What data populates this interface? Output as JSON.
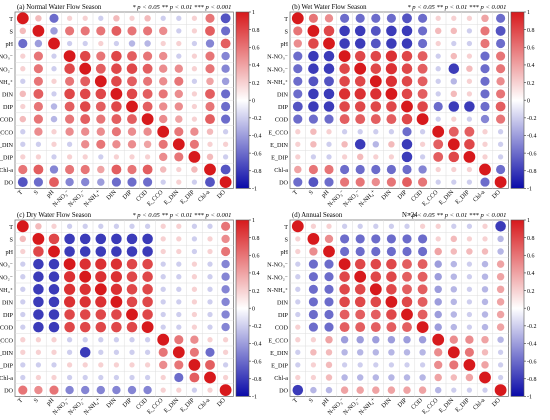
{
  "legend_text": "* p < 0.05 ** p < 0.01 *** p < 0.001",
  "variables": [
    "T",
    "S",
    "pH",
    "N-NO₃⁻",
    "N-NO₂⁻",
    "N-NH₄⁺",
    "DIN",
    "DIP",
    "COD",
    "E_CCO",
    "E_DIN",
    "E_DIP",
    "Chl-a",
    "DO"
  ],
  "colors": {
    "positive": "#d7191c",
    "negative": "#0a0aa8",
    "neutral": "#ffffff",
    "border": "#7a7a7a",
    "grid": "#dddddd"
  },
  "colorbar": {
    "ticks": [
      "1",
      "0.8",
      "0.6",
      "0.4",
      "0.2",
      "0",
      "-0.2",
      "-0.4",
      "-0.6",
      "-0.8",
      "-1"
    ]
  },
  "panels": [
    {
      "title": "(a) Normal Water Flow Season",
      "extra": ""
    },
    {
      "title": "(b) Wet Water Flow Season",
      "extra": ""
    },
    {
      "title": "(c) Dry Water Flow Season",
      "extra": ""
    },
    {
      "title": "(d) Annual Season",
      "extra": "N=24"
    }
  ],
  "chart_data": [
    {
      "type": "heatmap",
      "title": "(a) Normal Water Flow Season",
      "row_labels": [
        "T",
        "S",
        "pH",
        "N-NO₃⁻",
        "N-NO₂⁻",
        "N-NH₄⁺",
        "DIN",
        "DIP",
        "COD",
        "E_CCO",
        "E_DIN",
        "E_DIP",
        "Chl-a",
        "DO"
      ],
      "col_labels": [
        "T",
        "S",
        "pH",
        "N-NO₃⁻",
        "N-NO₂⁻",
        "N-NH₄⁺",
        "DIN",
        "DIP",
        "COD",
        "E_CCO",
        "E_DIN",
        "E_DIP",
        "Chl-a",
        "DO"
      ],
      "values": [
        [
          1,
          0.3,
          -0.6,
          0.2,
          0.2,
          -0.2,
          0.3,
          0.2,
          0.3,
          -0.2,
          -0.2,
          0.2,
          0.6,
          -0.7
        ],
        [
          0.3,
          1,
          -0.4,
          0.6,
          0.6,
          0.6,
          0.7,
          0.6,
          0.6,
          0.5,
          -0.2,
          0.2,
          0.7,
          -0.6
        ],
        [
          -0.6,
          -0.4,
          1,
          -0.2,
          -0.2,
          0.2,
          -0.2,
          -0.3,
          -0.3,
          0.2,
          0.2,
          -0.2,
          -0.5,
          0.7
        ],
        [
          0.2,
          0.6,
          -0.2,
          1,
          0.8,
          0.6,
          0.8,
          0.7,
          0.6,
          0.5,
          -0.2,
          0.2,
          0.6,
          -0.5
        ],
        [
          0.2,
          0.6,
          -0.2,
          0.8,
          1,
          0.7,
          0.8,
          0.8,
          0.7,
          0.5,
          0.5,
          0.2,
          0.6,
          -0.5
        ],
        [
          -0.2,
          0.6,
          0.2,
          0.6,
          0.7,
          1,
          0.8,
          0.7,
          0.6,
          0.5,
          0.6,
          -0.2,
          0.4,
          -0.4
        ],
        [
          0.3,
          0.7,
          -0.2,
          0.8,
          0.8,
          0.8,
          1,
          0.8,
          0.7,
          0.6,
          0.5,
          0.2,
          0.7,
          -0.6
        ],
        [
          0.2,
          0.6,
          -0.3,
          0.7,
          0.8,
          0.7,
          0.8,
          1,
          0.7,
          0.5,
          0.5,
          0.2,
          0.6,
          -0.6
        ],
        [
          0.3,
          0.6,
          -0.3,
          0.6,
          0.7,
          0.6,
          0.7,
          0.7,
          1,
          0.5,
          0.4,
          0.2,
          0.7,
          -0.6
        ],
        [
          -0.2,
          0.5,
          0.2,
          0.5,
          0.5,
          0.5,
          0.6,
          0.5,
          0.5,
          1,
          0.6,
          0.5,
          0.3,
          -0.2
        ],
        [
          -0.2,
          -0.2,
          0.2,
          -0.2,
          0.5,
          0.6,
          0.5,
          0.5,
          0.4,
          0.6,
          1,
          0.6,
          0.2,
          0.2
        ],
        [
          0.2,
          0.2,
          -0.2,
          0.2,
          0.2,
          -0.2,
          0.2,
          0.2,
          0.2,
          0.5,
          0.6,
          1,
          0.3,
          -0.2
        ],
        [
          0.6,
          0.7,
          -0.5,
          0.6,
          0.6,
          0.4,
          0.7,
          0.6,
          0.7,
          0.3,
          0.2,
          0.3,
          1,
          -0.7
        ],
        [
          -0.7,
          -0.6,
          0.7,
          -0.5,
          -0.5,
          -0.4,
          -0.6,
          -0.6,
          -0.6,
          -0.2,
          0.2,
          -0.2,
          -0.7,
          1
        ]
      ]
    },
    {
      "type": "heatmap",
      "title": "(b) Wet Water Flow Season",
      "row_labels": [
        "T",
        "S",
        "pH",
        "N-NO₃⁻",
        "N-NO₂⁻",
        "N-NH₄⁺",
        "DIN",
        "DIP",
        "COD",
        "E_CCO",
        "E_DIN",
        "E_DIP",
        "Chl-a",
        "DO"
      ],
      "col_labels": [
        "T",
        "S",
        "pH",
        "N-NO₃⁻",
        "N-NO₂⁻",
        "N-NH₄⁺",
        "DIN",
        "DIP",
        "COD",
        "E_CCO",
        "E_DIN",
        "E_DIP",
        "Chl-a",
        "DO"
      ],
      "values": [
        [
          1,
          0.6,
          0.5,
          -0.6,
          -0.6,
          -0.6,
          -0.6,
          -0.7,
          -0.6,
          0.2,
          0.2,
          0.2,
          0.4,
          -0.6
        ],
        [
          0.6,
          1,
          0.8,
          -0.8,
          -0.8,
          -0.7,
          -0.8,
          -0.8,
          -0.6,
          0.3,
          0.3,
          -0.2,
          0.6,
          -0.7
        ],
        [
          0.5,
          0.8,
          1,
          -0.8,
          -0.8,
          -0.7,
          -0.8,
          -0.8,
          -0.6,
          0.2,
          -0.2,
          -0.2,
          0.6,
          -0.6
        ],
        [
          -0.6,
          -0.8,
          -0.8,
          1,
          0.8,
          0.8,
          0.9,
          0.8,
          0.7,
          -0.2,
          0.3,
          0.2,
          -0.6,
          0.6
        ],
        [
          -0.6,
          -0.8,
          -0.8,
          0.8,
          1,
          0.8,
          0.9,
          0.8,
          0.7,
          -0.2,
          -0.8,
          0.3,
          -0.6,
          0.6
        ],
        [
          -0.6,
          -0.7,
          -0.7,
          0.8,
          0.8,
          1,
          0.9,
          0.8,
          0.7,
          -0.2,
          -0.3,
          0.2,
          -0.6,
          0.5
        ],
        [
          -0.6,
          -0.8,
          -0.8,
          0.9,
          0.9,
          0.9,
          1,
          0.8,
          0.7,
          -0.2,
          0.3,
          0.2,
          -0.6,
          0.6
        ],
        [
          -0.7,
          -0.8,
          -0.8,
          0.8,
          0.8,
          0.8,
          0.8,
          1,
          0.8,
          -0.6,
          -0.8,
          -0.8,
          -0.6,
          0.7
        ],
        [
          -0.6,
          -0.6,
          -0.6,
          0.7,
          0.7,
          0.7,
          0.7,
          0.8,
          1,
          -0.2,
          0.2,
          -0.2,
          -0.5,
          0.6
        ],
        [
          0.2,
          0.3,
          0.2,
          -0.2,
          -0.2,
          -0.2,
          -0.2,
          -0.6,
          -0.2,
          1,
          0.7,
          0.7,
          0.2,
          -0.2
        ],
        [
          0.2,
          0.3,
          -0.2,
          0.3,
          -0.8,
          -0.3,
          0.3,
          -0.8,
          0.2,
          0.7,
          1,
          0.8,
          0.2,
          -0.2
        ],
        [
          0.2,
          -0.2,
          -0.2,
          0.2,
          0.3,
          0.2,
          0.2,
          -0.8,
          -0.2,
          0.7,
          0.8,
          1,
          0.2,
          -0.2
        ],
        [
          0.4,
          0.6,
          0.6,
          -0.6,
          -0.6,
          -0.6,
          -0.6,
          -0.6,
          -0.5,
          0.2,
          0.2,
          0.2,
          1,
          -0.6
        ],
        [
          -0.6,
          -0.7,
          -0.6,
          0.6,
          0.6,
          0.5,
          0.6,
          0.7,
          0.6,
          -0.2,
          -0.2,
          -0.2,
          -0.6,
          1
        ]
      ]
    },
    {
      "type": "heatmap",
      "title": "(c) Dry Water Flow Season",
      "row_labels": [
        "T",
        "S",
        "pH",
        "N-NO₃⁻",
        "N-NO₂⁻",
        "N-NH₄⁺",
        "DIN",
        "DIP",
        "COD",
        "E_CCO",
        "E_DIN",
        "E_DIP",
        "Chl-a",
        "DO"
      ],
      "col_labels": [
        "T",
        "S",
        "pH",
        "N-NO₃⁻",
        "N-NO₂⁻",
        "N-NH₄⁺",
        "DIN",
        "DIP",
        "COD",
        "E_CCO",
        "E_DIN",
        "E_DIP",
        "Chl-a",
        "DO"
      ],
      "values": [
        [
          1,
          0.3,
          0.2,
          -0.2,
          -0.2,
          -0.2,
          -0.2,
          -0.2,
          -0.2,
          0.2,
          0.2,
          -0.2,
          -0.2,
          0.6
        ],
        [
          0.3,
          1,
          0.8,
          -0.8,
          -0.8,
          -0.8,
          -0.8,
          -0.8,
          -0.8,
          0.2,
          0.2,
          -0.2,
          0.2,
          0.5
        ],
        [
          0.2,
          0.8,
          1,
          -0.8,
          -0.8,
          -0.8,
          -0.8,
          -0.8,
          -0.8,
          0.2,
          0.2,
          -0.2,
          0.2,
          0.6
        ],
        [
          -0.2,
          -0.8,
          -0.8,
          1,
          0.9,
          0.9,
          0.9,
          0.8,
          0.8,
          -0.2,
          -0.2,
          0.2,
          -0.2,
          -0.5
        ],
        [
          -0.2,
          -0.8,
          -0.8,
          0.9,
          1,
          0.9,
          0.9,
          0.8,
          0.8,
          -0.2,
          -0.2,
          0.2,
          -0.2,
          -0.5
        ],
        [
          -0.2,
          -0.8,
          -0.8,
          0.9,
          0.9,
          1,
          0.9,
          0.8,
          0.8,
          -0.2,
          -0.2,
          0.2,
          -0.2,
          -0.5
        ],
        [
          -0.2,
          -0.8,
          -0.8,
          0.9,
          0.9,
          0.9,
          1,
          0.8,
          0.8,
          -0.2,
          -0.2,
          0.2,
          -0.2,
          -0.5
        ],
        [
          -0.2,
          -0.8,
          -0.8,
          0.8,
          0.8,
          0.8,
          0.8,
          1,
          0.8,
          -0.2,
          -0.2,
          0.2,
          -0.2,
          -0.5
        ],
        [
          -0.2,
          -0.8,
          -0.8,
          0.8,
          0.8,
          0.8,
          0.8,
          0.8,
          1,
          -0.2,
          -0.2,
          0.2,
          -0.2,
          -0.5
        ],
        [
          0.2,
          0.2,
          0.2,
          -0.2,
          -0.2,
          -0.2,
          -0.2,
          -0.2,
          -0.2,
          1,
          0.6,
          0.5,
          0.2,
          0.2
        ],
        [
          0.2,
          0.2,
          0.2,
          -0.2,
          -0.8,
          -0.2,
          -0.2,
          -0.2,
          -0.2,
          0.6,
          1,
          0.6,
          -0.6,
          0.2
        ],
        [
          -0.2,
          -0.2,
          -0.2,
          0.2,
          0.2,
          0.2,
          0.2,
          0.2,
          0.2,
          0.5,
          0.6,
          1,
          0.7,
          -0.2
        ],
        [
          -0.2,
          0.2,
          0.2,
          -0.2,
          -0.2,
          -0.2,
          -0.2,
          -0.2,
          -0.2,
          0.2,
          -0.6,
          0.7,
          1,
          0.2
        ],
        [
          0.6,
          0.5,
          0.6,
          -0.5,
          -0.5,
          -0.5,
          -0.5,
          -0.5,
          -0.5,
          0.2,
          0.2,
          -0.2,
          0.2,
          1
        ]
      ]
    },
    {
      "type": "heatmap",
      "title": "(d) Annual Season",
      "row_labels": [
        "T",
        "S",
        "pH",
        "N-NO₃⁻",
        "N-NO₂⁻",
        "N-NH₄⁺",
        "DIN",
        "DIP",
        "COD",
        "E_CCO",
        "E_DIN",
        "E_DIP",
        "Chl-a",
        "DO"
      ],
      "col_labels": [
        "T",
        "S",
        "pH",
        "N-NO₃⁻",
        "N-NO₂⁻",
        "N-NH₄⁺",
        "DIN",
        "DIP",
        "COD",
        "E_CCO",
        "E_DIN",
        "E_DIP",
        "Chl-a",
        "DO"
      ],
      "values": [
        [
          1,
          0.2,
          0.2,
          -0.2,
          -0.2,
          -0.2,
          -0.2,
          -0.2,
          0.2,
          0.2,
          -0.2,
          -0.2,
          0.2,
          -0.8
        ],
        [
          0.2,
          1,
          0.5,
          -0.6,
          -0.6,
          -0.6,
          -0.6,
          -0.6,
          -0.6,
          0.2,
          0.3,
          0.2,
          0.2,
          -0.3
        ],
        [
          0.2,
          0.5,
          1,
          -0.6,
          -0.6,
          -0.6,
          -0.6,
          -0.6,
          -0.6,
          0.4,
          0.3,
          0.3,
          0.3,
          -0.3
        ],
        [
          -0.2,
          -0.6,
          -0.6,
          1,
          0.8,
          0.8,
          0.8,
          0.7,
          0.7,
          -0.4,
          -0.3,
          -0.2,
          -0.3,
          0.4
        ],
        [
          -0.2,
          -0.6,
          -0.6,
          0.8,
          1,
          0.8,
          0.8,
          0.7,
          0.7,
          -0.4,
          -0.3,
          -0.2,
          -0.3,
          0.4
        ],
        [
          -0.2,
          -0.6,
          -0.6,
          0.8,
          0.8,
          1,
          0.8,
          0.7,
          0.7,
          -0.4,
          -0.3,
          -0.2,
          -0.3,
          0.4
        ],
        [
          -0.2,
          -0.6,
          -0.6,
          0.8,
          0.8,
          0.8,
          1,
          0.8,
          0.7,
          -0.4,
          -0.3,
          -0.2,
          -0.3,
          0.4
        ],
        [
          -0.2,
          -0.6,
          -0.6,
          0.7,
          0.7,
          0.7,
          0.8,
          1,
          0.7,
          -0.4,
          -0.3,
          -0.2,
          -0.3,
          0.4
        ],
        [
          0.2,
          -0.6,
          -0.6,
          0.7,
          0.7,
          0.7,
          0.7,
          0.7,
          1,
          -0.4,
          -0.3,
          -0.2,
          -0.3,
          0.4
        ],
        [
          0.2,
          0.2,
          0.4,
          -0.4,
          -0.4,
          -0.4,
          -0.4,
          -0.4,
          -0.4,
          1,
          0.5,
          0.5,
          0.4,
          -0.3
        ],
        [
          -0.2,
          0.3,
          0.3,
          -0.3,
          -0.3,
          -0.3,
          -0.3,
          -0.3,
          -0.3,
          0.5,
          1,
          0.6,
          0.3,
          -0.2
        ],
        [
          -0.2,
          0.2,
          0.3,
          -0.2,
          -0.2,
          -0.2,
          -0.2,
          -0.2,
          -0.2,
          0.5,
          0.6,
          1,
          0.4,
          -0.2
        ],
        [
          0.2,
          0.2,
          0.3,
          -0.3,
          -0.3,
          -0.3,
          -0.3,
          -0.3,
          -0.3,
          0.4,
          0.3,
          0.4,
          1,
          -0.2
        ],
        [
          -0.8,
          -0.3,
          -0.3,
          0.4,
          0.4,
          0.4,
          0.4,
          0.4,
          0.4,
          -0.3,
          -0.2,
          -0.2,
          -0.2,
          1
        ]
      ]
    }
  ]
}
